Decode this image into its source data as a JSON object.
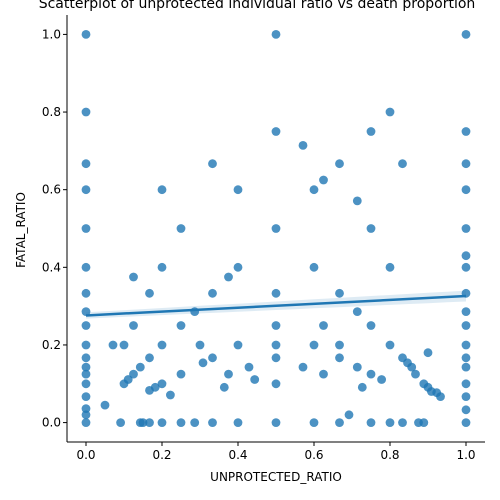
{
  "chart_data": {
    "type": "scatter",
    "title": "Scatterplot of unprotected individual ratio vs death proportion",
    "xlabel": "UNPROTECTED_RATIO",
    "ylabel": "FATAL_RATIO",
    "xlim": [
      -0.05,
      1.05
    ],
    "ylim": [
      -0.05,
      1.05
    ],
    "xticks": [
      0.0,
      0.2,
      0.4,
      0.6,
      0.8,
      1.0
    ],
    "xtick_labels": [
      "0.0",
      "0.2",
      "0.4",
      "0.6",
      "0.8",
      "1.0"
    ],
    "yticks": [
      0.0,
      0.2,
      0.4,
      0.6,
      0.8,
      1.0
    ],
    "ytick_labels": [
      "0.0",
      "0.2",
      "0.4",
      "0.6",
      "0.8",
      "1.0"
    ],
    "grid": false,
    "point_color": "#1f77b4",
    "point_opacity": 0.8,
    "regression": {
      "x": [
        0.0,
        1.0
      ],
      "y": [
        0.276,
        0.326
      ],
      "ci_low": [
        0.268,
        0.312
      ],
      "ci_high": [
        0.284,
        0.34
      ],
      "color": "#1f77b4"
    },
    "points": [
      [
        0,
        1
      ],
      [
        0,
        0.8
      ],
      [
        0,
        0.667
      ],
      [
        0,
        0.6
      ],
      [
        0,
        0.5
      ],
      [
        0,
        0.4
      ],
      [
        0,
        0.333
      ],
      [
        0,
        0.286
      ],
      [
        0,
        0.25
      ],
      [
        0,
        0.2
      ],
      [
        0,
        0.167
      ],
      [
        0,
        0.143
      ],
      [
        0,
        0.125
      ],
      [
        0,
        0.1
      ],
      [
        0,
        0.067
      ],
      [
        0,
        0.036
      ],
      [
        0,
        0.02
      ],
      [
        0,
        0
      ],
      [
        0.05,
        0.045
      ],
      [
        0.071,
        0.2
      ],
      [
        0.091,
        0
      ],
      [
        0.1,
        0.2
      ],
      [
        0.1,
        0.1
      ],
      [
        0.111,
        0.111
      ],
      [
        0.125,
        0.375
      ],
      [
        0.125,
        0.125
      ],
      [
        0.125,
        0.25
      ],
      [
        0.143,
        0.143
      ],
      [
        0.143,
        0
      ],
      [
        0.15,
        0
      ],
      [
        0.167,
        0.167
      ],
      [
        0.167,
        0.333
      ],
      [
        0.167,
        0.083
      ],
      [
        0.167,
        0
      ],
      [
        0.182,
        0.091
      ],
      [
        0.2,
        0.6
      ],
      [
        0.2,
        0.4
      ],
      [
        0.2,
        0.2
      ],
      [
        0.2,
        0.1
      ],
      [
        0.2,
        0
      ],
      [
        0.222,
        0.071
      ],
      [
        0.25,
        0.5
      ],
      [
        0.25,
        0.25
      ],
      [
        0.25,
        0.125
      ],
      [
        0.25,
        0
      ],
      [
        0.286,
        0.286
      ],
      [
        0.286,
        0
      ],
      [
        0.3,
        0.2
      ],
      [
        0.308,
        0.154
      ],
      [
        0.333,
        0.667
      ],
      [
        0.333,
        0.333
      ],
      [
        0.333,
        0.167
      ],
      [
        0.333,
        0
      ],
      [
        0.364,
        0.091
      ],
      [
        0.375,
        0.375
      ],
      [
        0.375,
        0.125
      ],
      [
        0.4,
        0.6
      ],
      [
        0.4,
        0.4
      ],
      [
        0.4,
        0.2
      ],
      [
        0.4,
        0
      ],
      [
        0.429,
        0.143
      ],
      [
        0.444,
        0.111
      ],
      [
        0.5,
        1
      ],
      [
        0.5,
        0.75
      ],
      [
        0.5,
        0.5
      ],
      [
        0.5,
        0.333
      ],
      [
        0.5,
        0.25
      ],
      [
        0.5,
        0.2
      ],
      [
        0.5,
        0.167
      ],
      [
        0.5,
        0.1
      ],
      [
        0.5,
        0
      ],
      [
        0.571,
        0.714
      ],
      [
        0.571,
        0.143
      ],
      [
        0.6,
        0.6
      ],
      [
        0.6,
        0.4
      ],
      [
        0.6,
        0.2
      ],
      [
        0.6,
        0
      ],
      [
        0.625,
        0.625
      ],
      [
        0.625,
        0.125
      ],
      [
        0.625,
        0.25
      ],
      [
        0.667,
        0.667
      ],
      [
        0.667,
        0.333
      ],
      [
        0.667,
        0.167
      ],
      [
        0.667,
        0.2
      ],
      [
        0.667,
        0
      ],
      [
        0.692,
        0.02
      ],
      [
        0.714,
        0.571
      ],
      [
        0.714,
        0.286
      ],
      [
        0.714,
        0.143
      ],
      [
        0.727,
        0.091
      ],
      [
        0.75,
        0.75
      ],
      [
        0.75,
        0.5
      ],
      [
        0.75,
        0.25
      ],
      [
        0.75,
        0.125
      ],
      [
        0.75,
        0
      ],
      [
        0.778,
        0.111
      ],
      [
        0.8,
        0.8
      ],
      [
        0.8,
        0.4
      ],
      [
        0.8,
        0.2
      ],
      [
        0.8,
        0
      ],
      [
        0.833,
        0.667
      ],
      [
        0.833,
        0.167
      ],
      [
        0.833,
        0
      ],
      [
        0.846,
        0.154
      ],
      [
        0.857,
        0.143
      ],
      [
        0.867,
        0.125
      ],
      [
        0.875,
        0
      ],
      [
        0.889,
        0.1
      ],
      [
        0.889,
        0
      ],
      [
        0.9,
        0.18
      ],
      [
        0.9,
        0.091
      ],
      [
        0.909,
        0.08
      ],
      [
        0.923,
        0.077
      ],
      [
        0.933,
        0.067
      ],
      [
        1,
        1
      ],
      [
        1,
        0.75
      ],
      [
        1,
        0.667
      ],
      [
        1,
        0.6
      ],
      [
        1,
        0.5
      ],
      [
        1,
        0.43
      ],
      [
        1,
        0.4
      ],
      [
        1,
        0.333
      ],
      [
        1,
        0.286
      ],
      [
        1,
        0.25
      ],
      [
        1,
        0.2
      ],
      [
        1,
        0.167
      ],
      [
        1,
        0.143
      ],
      [
        1,
        0.1
      ],
      [
        1,
        0.067
      ],
      [
        1,
        0.033
      ],
      [
        1,
        0
      ]
    ]
  }
}
